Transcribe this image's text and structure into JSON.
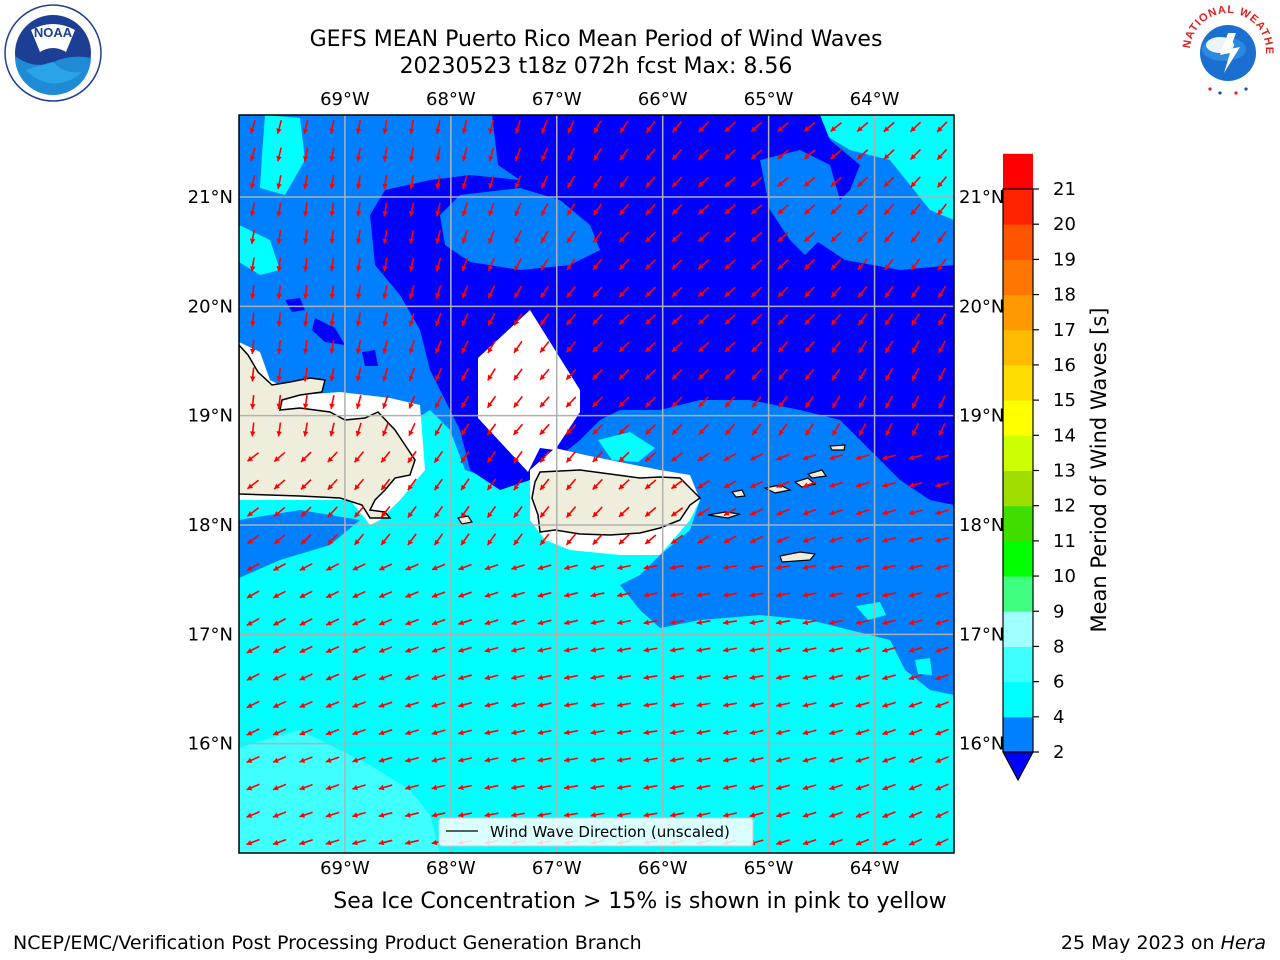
{
  "title": {
    "line1": "GEFS MEAN Puerto Rico Mean Period of Wind Waves",
    "line2": "20230523 t18z 072h fcst   Max: 8.56"
  },
  "logos": {
    "left": {
      "name": "noaa-logo",
      "text": "NOAA"
    },
    "right": {
      "name": "nws-logo",
      "text": "NATIONAL WEATHER SERVICE"
    }
  },
  "map": {
    "lon_labels": [
      "69°W",
      "68°W",
      "67°W",
      "66°W",
      "65°W",
      "64°W"
    ],
    "lat_labels": [
      "21°N",
      "20°N",
      "19°N",
      "18°N",
      "17°N",
      "16°N"
    ],
    "lon_range": [
      -70.0,
      -63.25
    ],
    "lat_range": [
      15.0,
      21.75
    ],
    "legend_label": "Wind Wave Direction (unscaled)",
    "arrow_color": "#ff0000",
    "land_color": "#efeedd"
  },
  "colorbar": {
    "label": "Mean Period of Wind Waves [s]",
    "tick_labels": [
      "2",
      "4",
      "6",
      "8",
      "9",
      "10",
      "11",
      "12",
      "13",
      "14",
      "15",
      "16",
      "17",
      "18",
      "19",
      "20",
      "21"
    ],
    "colors": [
      "#0080ff",
      "#00ffff",
      "#40ffff",
      "#a0ffff",
      "#40ff80",
      "#00ff00",
      "#40dd00",
      "#a0dd00",
      "#ccff00",
      "#ffff00",
      "#ffdd00",
      "#ffbb00",
      "#ff9900",
      "#ff7700",
      "#ff5500",
      "#ff2200",
      "#ff0000"
    ],
    "under_color": "#0000ff"
  },
  "ice_note": "Sea Ice Concentration > 15% is shown in pink to yellow",
  "footer": {
    "left": "NCEP/EMC/Verification Post Processing Product Generation Branch",
    "date": "25 May 2023 on ",
    "machine": "Hera"
  }
}
